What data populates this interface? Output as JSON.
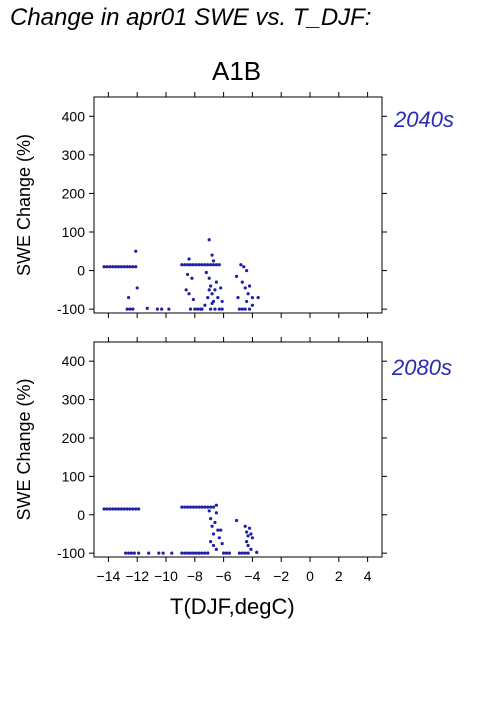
{
  "figure": {
    "title": "Change in apr01 SWE vs. T_DJF:",
    "scenario": "A1B",
    "xlabel": "T(DJF,degC)"
  },
  "colors": {
    "points": "#1f1fa8",
    "axes": "#000000",
    "period_label": "#2a2ab4"
  },
  "chart_data": [
    {
      "type": "scatter",
      "title": "2040s",
      "xlabel": "T(DJF,degC)",
      "ylabel": "SWE Change (%)",
      "xlim": [
        -15,
        5
      ],
      "ylim": [
        -110,
        450
      ],
      "xticks": [
        -14,
        -12,
        -10,
        -8,
        -6,
        -4,
        -2,
        0,
        2,
        4
      ],
      "yticks": [
        -100,
        0,
        100,
        200,
        300,
        400
      ],
      "show_x_tick_labels": false,
      "grid": false,
      "points": [
        [
          -14.3,
          10
        ],
        [
          -14.1,
          10
        ],
        [
          -13.9,
          10
        ],
        [
          -13.7,
          10
        ],
        [
          -13.5,
          10
        ],
        [
          -13.3,
          10
        ],
        [
          -13.1,
          10
        ],
        [
          -12.9,
          10
        ],
        [
          -12.7,
          10
        ],
        [
          -12.5,
          10
        ],
        [
          -12.3,
          10
        ],
        [
          -12.1,
          10
        ],
        [
          -12.1,
          50
        ],
        [
          -12.0,
          -45
        ],
        [
          -12.6,
          -70
        ],
        [
          -12.7,
          -100
        ],
        [
          -12.5,
          -100
        ],
        [
          -12.3,
          -100
        ],
        [
          -11.3,
          -98
        ],
        [
          -10.6,
          -100
        ],
        [
          -10.3,
          -100
        ],
        [
          -9.8,
          -100
        ],
        [
          -8.9,
          15
        ],
        [
          -8.7,
          15
        ],
        [
          -8.5,
          15
        ],
        [
          -8.3,
          15
        ],
        [
          -8.1,
          15
        ],
        [
          -7.9,
          15
        ],
        [
          -7.7,
          15
        ],
        [
          -7.5,
          15
        ],
        [
          -7.3,
          15
        ],
        [
          -7.1,
          15
        ],
        [
          -6.9,
          15
        ],
        [
          -6.7,
          15
        ],
        [
          -6.5,
          15
        ],
        [
          -6.3,
          15
        ],
        [
          -8.4,
          30
        ],
        [
          -8.5,
          -10
        ],
        [
          -8.6,
          -50
        ],
        [
          -8.4,
          -60
        ],
        [
          -8.2,
          -20
        ],
        [
          -8.1,
          -75
        ],
        [
          -8.3,
          -100
        ],
        [
          -8.0,
          -100
        ],
        [
          -7.8,
          -100
        ],
        [
          -7.6,
          -100
        ],
        [
          -7.0,
          80
        ],
        [
          -6.8,
          40
        ],
        [
          -6.7,
          25
        ],
        [
          -7.2,
          -5
        ],
        [
          -7.0,
          -20
        ],
        [
          -6.9,
          -40
        ],
        [
          -6.8,
          -60
        ],
        [
          -7.1,
          -70
        ],
        [
          -6.7,
          -80
        ],
        [
          -6.6,
          -50
        ],
        [
          -6.5,
          -30
        ],
        [
          -7.3,
          -90
        ],
        [
          -6.9,
          -100
        ],
        [
          -6.6,
          -100
        ],
        [
          -6.4,
          -70
        ],
        [
          -7.0,
          -50
        ],
        [
          -6.8,
          -85
        ],
        [
          -7.5,
          -100
        ],
        [
          -6.3,
          -100
        ],
        [
          -6.1,
          -100
        ],
        [
          -6.2,
          -45
        ],
        [
          -6.1,
          -80
        ],
        [
          -5.1,
          -15
        ],
        [
          -4.8,
          15
        ],
        [
          -4.6,
          10
        ],
        [
          -4.4,
          0
        ],
        [
          -4.7,
          -30
        ],
        [
          -4.5,
          -45
        ],
        [
          -4.3,
          -60
        ],
        [
          -5.0,
          -70
        ],
        [
          -4.9,
          -100
        ],
        [
          -4.7,
          -100
        ],
        [
          -4.5,
          -100
        ],
        [
          -4.2,
          -100
        ],
        [
          -4.0,
          -90
        ],
        [
          -4.2,
          -40
        ],
        [
          -4.0,
          -70
        ],
        [
          -3.6,
          -70
        ],
        [
          -4.4,
          -80
        ]
      ]
    },
    {
      "type": "scatter",
      "title": "2080s",
      "xlabel": "T(DJF,degC)",
      "ylabel": "SWE Change (%)",
      "xlim": [
        -15,
        5
      ],
      "ylim": [
        -110,
        450
      ],
      "xticks": [
        -14,
        -12,
        -10,
        -8,
        -6,
        -4,
        -2,
        0,
        2,
        4
      ],
      "yticks": [
        -100,
        0,
        100,
        200,
        300,
        400
      ],
      "show_x_tick_labels": true,
      "grid": false,
      "points": [
        [
          -14.3,
          15
        ],
        [
          -14.1,
          15
        ],
        [
          -13.9,
          15
        ],
        [
          -13.7,
          15
        ],
        [
          -13.5,
          15
        ],
        [
          -13.3,
          15
        ],
        [
          -13.1,
          15
        ],
        [
          -12.9,
          15
        ],
        [
          -12.7,
          15
        ],
        [
          -12.5,
          15
        ],
        [
          -12.3,
          15
        ],
        [
          -12.1,
          15
        ],
        [
          -11.9,
          15
        ],
        [
          -12.8,
          -100
        ],
        [
          -12.6,
          -100
        ],
        [
          -12.4,
          -100
        ],
        [
          -12.2,
          -100
        ],
        [
          -11.9,
          -100
        ],
        [
          -11.2,
          -100
        ],
        [
          -10.5,
          -100
        ],
        [
          -10.2,
          -100
        ],
        [
          -9.6,
          -100
        ],
        [
          -8.9,
          20
        ],
        [
          -8.7,
          20
        ],
        [
          -8.5,
          20
        ],
        [
          -8.3,
          20
        ],
        [
          -8.1,
          20
        ],
        [
          -7.9,
          20
        ],
        [
          -7.7,
          20
        ],
        [
          -7.5,
          20
        ],
        [
          -7.3,
          20
        ],
        [
          -7.1,
          20
        ],
        [
          -6.9,
          20
        ],
        [
          -6.7,
          20
        ],
        [
          -6.5,
          25
        ],
        [
          -8.9,
          -100
        ],
        [
          -8.7,
          -100
        ],
        [
          -8.5,
          -100
        ],
        [
          -8.3,
          -100
        ],
        [
          -8.1,
          -100
        ],
        [
          -7.9,
          -100
        ],
        [
          -7.7,
          -100
        ],
        [
          -7.5,
          -100
        ],
        [
          -7.3,
          -100
        ],
        [
          -7.1,
          -100
        ],
        [
          -7.0,
          10
        ],
        [
          -6.9,
          -10
        ],
        [
          -6.8,
          -30
        ],
        [
          -6.7,
          -50
        ],
        [
          -6.6,
          -20
        ],
        [
          -6.5,
          5
        ],
        [
          -6.4,
          -40
        ],
        [
          -6.9,
          -70
        ],
        [
          -6.7,
          -80
        ],
        [
          -6.5,
          -90
        ],
        [
          -6.3,
          -60
        ],
        [
          -6.2,
          -40
        ],
        [
          -6.1,
          -75
        ],
        [
          -6.0,
          -100
        ],
        [
          -5.8,
          -100
        ],
        [
          -5.6,
          -100
        ],
        [
          -5.1,
          -15
        ],
        [
          -4.9,
          -100
        ],
        [
          -4.7,
          -100
        ],
        [
          -4.5,
          -100
        ],
        [
          -4.3,
          -100
        ],
        [
          -4.1,
          -90
        ],
        [
          -4.5,
          -30
        ],
        [
          -4.4,
          -45
        ],
        [
          -4.3,
          -55
        ],
        [
          -4.2,
          -35
        ],
        [
          -4.1,
          -50
        ],
        [
          -4.0,
          -60
        ],
        [
          -4.4,
          -70
        ],
        [
          -4.3,
          -80
        ],
        [
          -3.7,
          -98
        ]
      ]
    }
  ]
}
